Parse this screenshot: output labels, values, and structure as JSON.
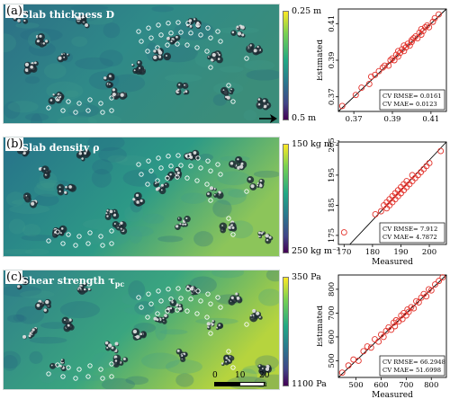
{
  "panels": [
    {
      "id": "a",
      "letter": "(a)",
      "title": "Slab thickness D",
      "colorbar": {
        "top": "0.25 m",
        "bottom": "0.5 m"
      },
      "map_tint": "#2e7f8c"
    },
    {
      "id": "b",
      "letter": "(b)",
      "title": "Slab density ρ",
      "colorbar": {
        "top": "150 kg m⁻³",
        "bottom": "250 kg m⁻³"
      },
      "map_tint": "#2a8a86"
    },
    {
      "id": "c",
      "letter": "(c)",
      "title": "Shear strength τ",
      "title_sub": "pc",
      "colorbar": {
        "top": "350 Pa",
        "bottom": "1100 Pa"
      },
      "map_tint": "#3a9a7e"
    }
  ],
  "scale_bar": {
    "ticks": [
      "0",
      "10",
      "20 m"
    ]
  },
  "chart_data": [
    {
      "type": "scatter",
      "panel": "a",
      "xlabel": "",
      "ylabel": "Estimated",
      "xlim": [
        0.362,
        0.418
      ],
      "ylim": [
        0.362,
        0.418
      ],
      "xticks": [
        0.37,
        0.39,
        0.41
      ],
      "yticks": [
        0.37,
        0.39,
        0.41
      ],
      "tick_decimals": 2,
      "annotation": [
        "CV RMSE= 0.0161",
        "CV MAE= 0.0123"
      ],
      "marker_color": "#e3322b",
      "x": [
        0.364,
        0.371,
        0.374,
        0.378,
        0.379,
        0.381,
        0.383,
        0.385,
        0.386,
        0.388,
        0.389,
        0.39,
        0.391,
        0.392,
        0.393,
        0.393,
        0.394,
        0.395,
        0.396,
        0.396,
        0.397,
        0.398,
        0.399,
        0.4,
        0.4,
        0.401,
        0.402,
        0.403,
        0.404,
        0.405,
        0.405,
        0.406,
        0.407,
        0.408,
        0.409,
        0.411,
        0.412,
        0.414
      ],
      "y": [
        0.365,
        0.371,
        0.375,
        0.377,
        0.381,
        0.382,
        0.384,
        0.386,
        0.387,
        0.387,
        0.39,
        0.391,
        0.39,
        0.393,
        0.392,
        0.395,
        0.394,
        0.396,
        0.395,
        0.398,
        0.397,
        0.399,
        0.398,
        0.401,
        0.4,
        0.402,
        0.403,
        0.402,
        0.405,
        0.404,
        0.407,
        0.406,
        0.408,
        0.409,
        0.408,
        0.411,
        0.413,
        0.415
      ]
    },
    {
      "type": "scatter",
      "panel": "b",
      "xlabel": "Measured",
      "ylabel": "",
      "xlim": [
        168,
        206
      ],
      "ylim": [
        172,
        206
      ],
      "xticks": [
        170,
        180,
        190,
        200
      ],
      "yticks": [
        175,
        185,
        195,
        205
      ],
      "tick_decimals": 0,
      "annotation": [
        "CV RMSE= 7.912",
        "CV MAE= 4.7872"
      ],
      "marker_color": "#e3322b",
      "x": [
        170,
        181,
        183,
        184,
        185,
        185,
        186,
        186,
        187,
        187,
        188,
        188,
        189,
        189,
        190,
        190,
        191,
        191,
        192,
        192,
        193,
        194,
        194,
        195,
        196,
        197,
        198,
        199,
        200,
        204
      ],
      "y": [
        176,
        182,
        183,
        185,
        184,
        186,
        185,
        187,
        186,
        188,
        187,
        189,
        188,
        190,
        189,
        191,
        190,
        192,
        191,
        193,
        192,
        193,
        195,
        194,
        195,
        196,
        197,
        198,
        199,
        203
      ]
    },
    {
      "type": "scatter",
      "panel": "c",
      "xlabel": "Measured",
      "ylabel": "Estimated",
      "xlim": [
        430,
        860
      ],
      "ylim": [
        430,
        860
      ],
      "xticks": [
        500,
        600,
        700,
        800
      ],
      "yticks": [
        500,
        600,
        700,
        800
      ],
      "tick_decimals": 0,
      "annotation": [
        "CV RMSE= 66.2948",
        "CV MAE= 51.6998"
      ],
      "marker_color": "#e3322b",
      "x": [
        445,
        470,
        490,
        510,
        530,
        545,
        560,
        575,
        590,
        600,
        610,
        620,
        630,
        640,
        650,
        655,
        660,
        670,
        680,
        685,
        690,
        700,
        705,
        710,
        720,
        730,
        740,
        750,
        760,
        770,
        780,
        790,
        800,
        815,
        830,
        845
      ],
      "y": [
        450,
        480,
        505,
        500,
        540,
        560,
        555,
        590,
        580,
        610,
        600,
        625,
        640,
        630,
        660,
        645,
        670,
        665,
        690,
        675,
        700,
        690,
        715,
        705,
        725,
        720,
        750,
        745,
        765,
        780,
        770,
        800,
        795,
        820,
        835,
        850
      ]
    }
  ]
}
